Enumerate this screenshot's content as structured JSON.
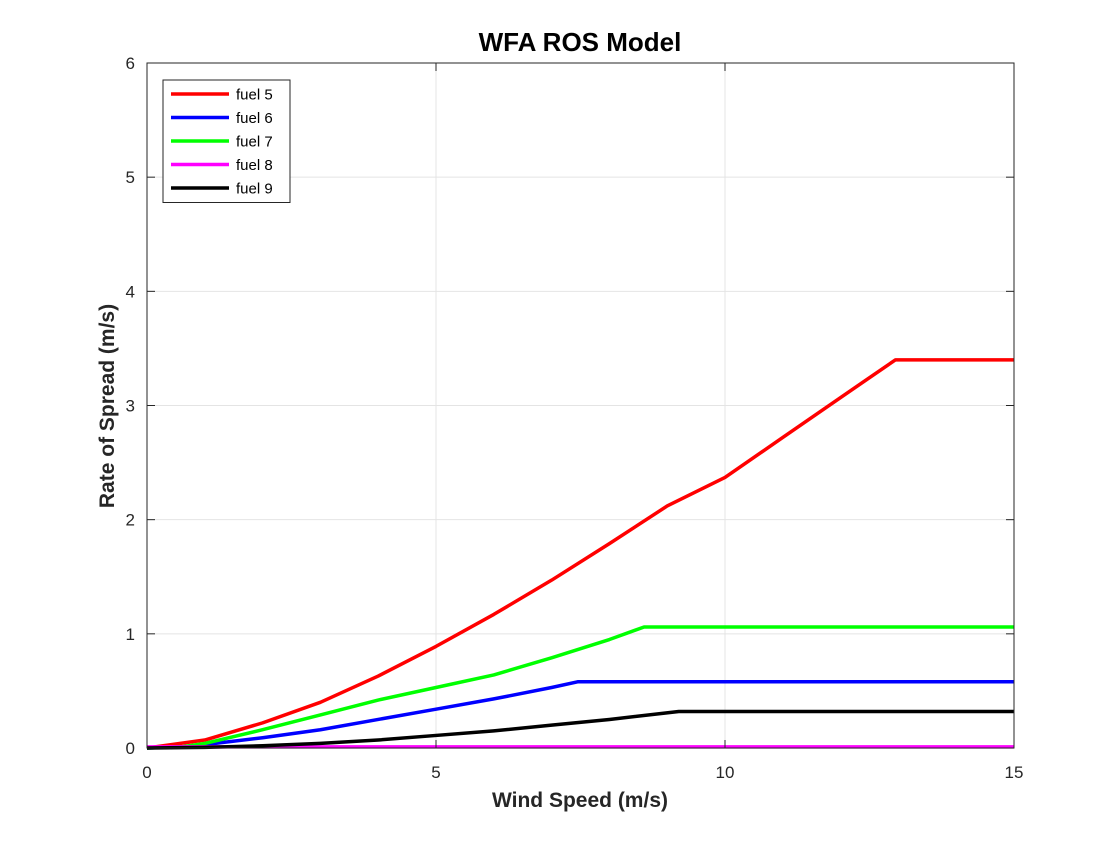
{
  "chart_data": {
    "type": "line",
    "title": "WFA ROS Model",
    "xlabel": "Wind Speed (m/s)",
    "ylabel": "Rate of Spread (m/s)",
    "xlim": [
      0,
      15
    ],
    "ylim": [
      0,
      6
    ],
    "xticks": [
      0,
      5,
      10,
      15
    ],
    "xtick_labels": [
      "0",
      "5",
      "10",
      "15"
    ],
    "yticks": [
      0,
      1,
      2,
      3,
      4,
      5,
      6
    ],
    "ytick_labels": [
      "0",
      "1",
      "2",
      "3",
      "4",
      "5",
      "6"
    ],
    "grid": true,
    "legend_position": "top-left",
    "series": [
      {
        "name": "fuel 5",
        "color": "#ff0000",
        "x": [
          0,
          1,
          2,
          3,
          4,
          5,
          6,
          7,
          8,
          9,
          10,
          11,
          12,
          12.95,
          15
        ],
        "y": [
          0,
          0.07,
          0.22,
          0.4,
          0.63,
          0.89,
          1.17,
          1.47,
          1.79,
          2.12,
          2.37,
          2.72,
          3.07,
          3.4,
          3.4
        ]
      },
      {
        "name": "fuel 6",
        "color": "#0000ff",
        "x": [
          0,
          0.6,
          1,
          2,
          3,
          4,
          5,
          6,
          7,
          7.45,
          15
        ],
        "y": [
          0,
          0.01,
          0.03,
          0.09,
          0.16,
          0.25,
          0.34,
          0.43,
          0.53,
          0.58,
          0.58
        ]
      },
      {
        "name": "fuel 7",
        "color": "#00ff00",
        "x": [
          0,
          0.6,
          1,
          2,
          3,
          4,
          5,
          6,
          7,
          8,
          8.6,
          15
        ],
        "y": [
          0,
          0.01,
          0.04,
          0.16,
          0.29,
          0.42,
          0.53,
          0.64,
          0.79,
          0.95,
          1.06,
          1.06
        ]
      },
      {
        "name": "fuel 8",
        "color": "#ff00ff",
        "x": [
          0,
          15
        ],
        "y": [
          0.01,
          0.01
        ]
      },
      {
        "name": "fuel 9",
        "color": "#000000",
        "x": [
          0,
          1,
          2,
          3,
          4,
          5,
          6,
          7,
          8,
          9.2,
          15
        ],
        "y": [
          0,
          0.005,
          0.02,
          0.04,
          0.07,
          0.11,
          0.15,
          0.2,
          0.25,
          0.32,
          0.32
        ]
      }
    ]
  }
}
